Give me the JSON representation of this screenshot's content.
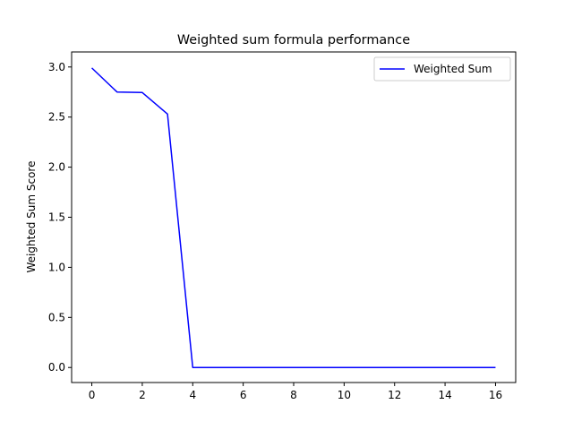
{
  "chart_data": {
    "type": "line",
    "title": "Weighted sum formula performance",
    "xlabel": "",
    "ylabel": "Weighted Sum Score",
    "xlim": [
      -0.8,
      16.8
    ],
    "ylim": [
      -0.15,
      3.15
    ],
    "xticks": [
      0,
      2,
      4,
      6,
      8,
      10,
      12,
      14,
      16
    ],
    "xtick_labels": [
      "0",
      "2",
      "4",
      "6",
      "8",
      "10",
      "12",
      "14",
      "16"
    ],
    "yticks": [
      0.0,
      0.5,
      1.0,
      1.5,
      2.0,
      2.5,
      3.0
    ],
    "ytick_labels": [
      "0.0",
      "0.5",
      "1.0",
      "1.5",
      "2.0",
      "2.5",
      "3.0"
    ],
    "grid": false,
    "legend_position": "upper right",
    "series": [
      {
        "name": "Weighted Sum",
        "color": "#0000ff",
        "x": [
          0,
          1,
          2,
          3,
          4,
          5,
          6,
          7,
          8,
          9,
          10,
          11,
          12,
          13,
          14,
          15,
          16
        ],
        "values": [
          2.99,
          2.75,
          2.745,
          2.53,
          0,
          0,
          0,
          0,
          0,
          0,
          0,
          0,
          0,
          0,
          0,
          0,
          0
        ]
      }
    ]
  }
}
